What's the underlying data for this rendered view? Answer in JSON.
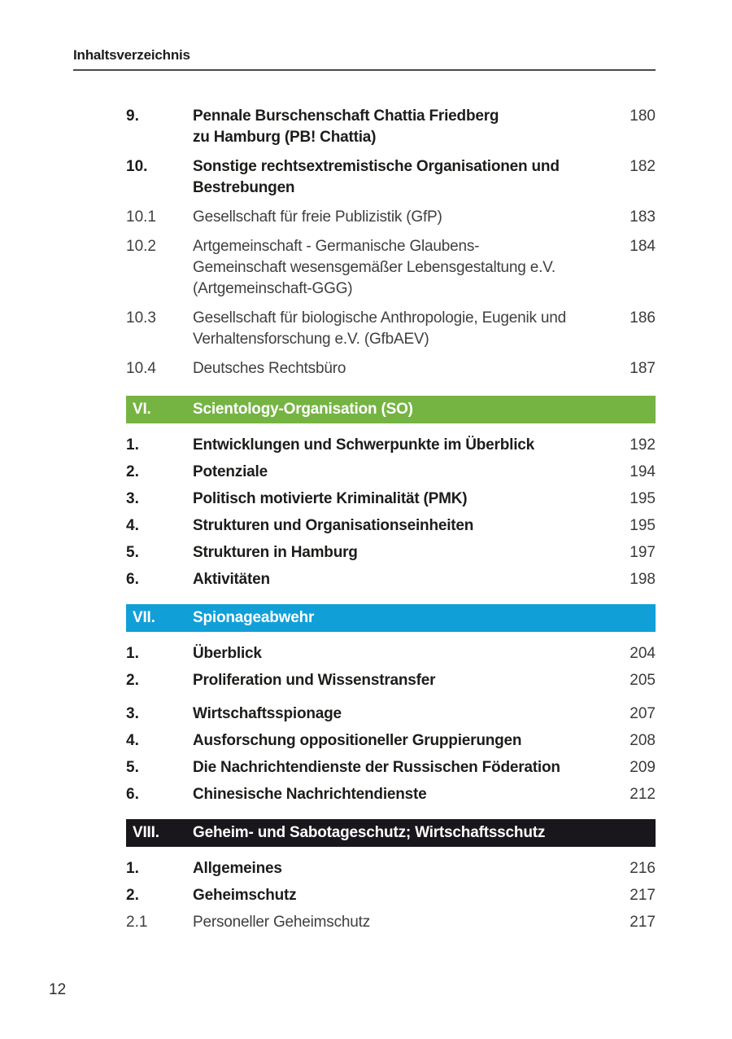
{
  "header": {
    "title": "Inhaltsverzeichnis"
  },
  "footer": {
    "page_number": "12"
  },
  "colors": {
    "section_green": "#75b443",
    "section_blue": "#119fd8",
    "section_black": "#1a171c"
  },
  "toc": {
    "rows": [
      {
        "kind": "entry",
        "group": "top",
        "num": "9.",
        "lines": [
          "Pennale Burschenschaft Chattia Friedberg",
          "zu Hamburg (PB! Chattia)"
        ],
        "page": "180",
        "bold": true
      },
      {
        "kind": "entry",
        "group": "top",
        "num": "10.",
        "lines": [
          "Sonstige rechtsextremistische Organisationen und",
          "Bestrebungen"
        ],
        "page": "182",
        "bold": true
      },
      {
        "kind": "entry",
        "group": "top",
        "num": "10.1",
        "lines": [
          "Gesellschaft für freie Publizistik (GfP)"
        ],
        "page": "183",
        "bold": false
      },
      {
        "kind": "entry",
        "group": "top",
        "num": "10.2",
        "lines": [
          "Artgemeinschaft - Germanische Glaubens-",
          "Gemeinschaft wesensgemäßer Lebensgestaltung e.V.",
          "(Artgemeinschaft-GGG)"
        ],
        "page": "184",
        "bold": false
      },
      {
        "kind": "entry",
        "group": "top",
        "num": "10.3",
        "lines": [
          "Gesellschaft für biologische Anthropologie, Eugenik und",
          "Verhaltensforschung e.V. (GfbAEV)"
        ],
        "page": "186",
        "bold": false
      },
      {
        "kind": "entry",
        "group": "top",
        "num": "10.4",
        "lines": [
          "Deutsches Rechtsbüro"
        ],
        "page": "187",
        "bold": false
      },
      {
        "kind": "banner",
        "id": "vi",
        "num": "VI.",
        "title": "Scientology-Organisation (SO)",
        "color_key": "section_green"
      },
      {
        "kind": "entry",
        "num": "1.",
        "lines": [
          "Entwicklungen und Schwerpunkte im Überblick"
        ],
        "page": "192",
        "bold": true
      },
      {
        "kind": "entry",
        "num": "2.",
        "lines": [
          "Potenziale"
        ],
        "page": "194",
        "bold": true
      },
      {
        "kind": "entry",
        "num": "3.",
        "lines": [
          "Politisch motivierte Kriminalität (PMK)"
        ],
        "page": "195",
        "bold": true
      },
      {
        "kind": "entry",
        "num": "4.",
        "lines": [
          "Strukturen und Organisationseinheiten"
        ],
        "page": "195",
        "bold": true
      },
      {
        "kind": "entry",
        "num": "5.",
        "lines": [
          "Strukturen in Hamburg"
        ],
        "page": "197",
        "bold": true
      },
      {
        "kind": "entry",
        "num": "6.",
        "lines": [
          "Aktivitäten"
        ],
        "page": "198",
        "bold": true
      },
      {
        "kind": "banner",
        "id": "vii",
        "num": "VII.",
        "title": "Spionageabwehr",
        "color_key": "section_blue"
      },
      {
        "kind": "entry",
        "num": "1.",
        "lines": [
          "Überblick"
        ],
        "page": "204",
        "bold": true
      },
      {
        "kind": "entry",
        "num": "2.",
        "lines": [
          "Proliferation und Wissenstransfer"
        ],
        "page": "205",
        "bold": true
      },
      {
        "kind": "entry",
        "num": "3.",
        "lines": [
          "Wirtschaftsspionage"
        ],
        "page": "207",
        "bold": true,
        "extra_gap": true
      },
      {
        "kind": "entry",
        "num": "4.",
        "lines": [
          "Ausforschung oppositioneller Gruppierungen"
        ],
        "page": "208",
        "bold": true
      },
      {
        "kind": "entry",
        "num": "5.",
        "lines": [
          "Die Nachrichtendienste der Russischen Föderation"
        ],
        "page": "209",
        "bold": true
      },
      {
        "kind": "entry",
        "num": "6.",
        "lines": [
          "Chinesische Nachrichtendienste"
        ],
        "page": "212",
        "bold": true
      },
      {
        "kind": "banner",
        "id": "viii",
        "num": "VIII.",
        "title": "Geheim- und Sabotageschutz; Wirtschaftsschutz",
        "color_key": "section_black"
      },
      {
        "kind": "entry",
        "num": "1.",
        "lines": [
          "Allgemeines"
        ],
        "page": "216",
        "bold": true
      },
      {
        "kind": "entry",
        "num": "2.",
        "lines": [
          "Geheimschutz"
        ],
        "page": "217",
        "bold": true
      },
      {
        "kind": "entry",
        "num": "2.1",
        "lines": [
          "Personeller Geheimschutz"
        ],
        "page": "217",
        "bold": false
      }
    ]
  }
}
